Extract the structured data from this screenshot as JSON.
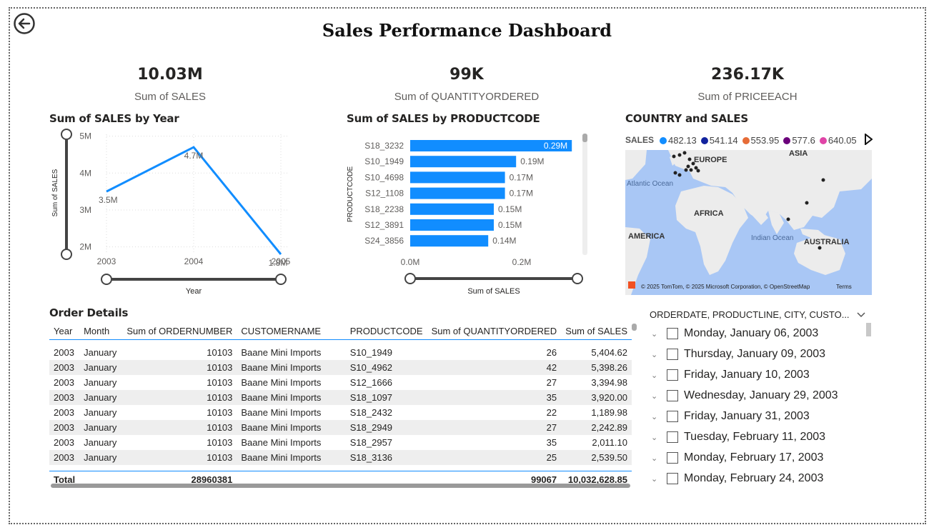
{
  "header": {
    "title": "Sales Performance Dashboard"
  },
  "kpis": [
    {
      "value": "10.03M",
      "label": "Sum of SALES"
    },
    {
      "value": "99K",
      "label": "Sum of QUANTITYORDERED"
    },
    {
      "value": "236.17K",
      "label": "Sum of PRICEEACH"
    }
  ],
  "line_chart": {
    "title": "Sum of SALES by Year",
    "chart_data": {
      "type": "line",
      "x": [
        "2003",
        "2004",
        "2005"
      ],
      "series": [
        {
          "values": [
            3.5,
            4.7,
            1.8
          ]
        }
      ],
      "data_labels": [
        "3.5M",
        "4.7M",
        "1.8M"
      ],
      "y_ticks": [
        "2M",
        "3M",
        "4M",
        "5M"
      ],
      "y_tick_values": [
        2,
        3,
        4,
        5
      ],
      "ylim": [
        1.8,
        5.05
      ],
      "xlabel": "Year",
      "ylabel": "Sum of SALES",
      "color": "#118dff",
      "grid": true
    }
  },
  "bar_chart": {
    "title": "Sum of SALES by PRODUCTCODE",
    "chart_data": {
      "type": "bar",
      "orientation": "horizontal",
      "categories": [
        "S18_3232",
        "S10_1949",
        "S10_4698",
        "S12_1108",
        "S18_2238",
        "S12_3891",
        "S24_3856"
      ],
      "values": [
        0.29,
        0.19,
        0.17,
        0.17,
        0.15,
        0.15,
        0.14
      ],
      "data_labels": [
        "0.29M",
        "0.19M",
        "0.17M",
        "0.17M",
        "0.15M",
        "0.15M",
        "0.14M"
      ],
      "x_ticks": [
        "0.0M",
        "0.2M"
      ],
      "x_tick_values": [
        0,
        0.2
      ],
      "xlim": [
        0,
        0.3
      ],
      "xlabel": "Sum of SALES",
      "ylabel": "PRODUCTCODE",
      "color": "#118dff"
    }
  },
  "map": {
    "title": "COUNTRY and SALES",
    "legend_title": "SALES",
    "legend": [
      {
        "label": "482.13",
        "color": "#118dff"
      },
      {
        "label": "541.14",
        "color": "#12239e"
      },
      {
        "label": "553.95",
        "color": "#e66c37"
      },
      {
        "label": "577.6",
        "color": "#6b007b"
      },
      {
        "label": "640.05",
        "color": "#e044a7"
      }
    ],
    "regions": [
      "ASIA",
      "EUROPE",
      "Atlantic Ocean",
      "AFRICA",
      "AMERICA",
      "Indian Ocean",
      "AUSTRALIA"
    ],
    "attribution": "© 2025 TomTom, © 2025 Microsoft Corporation, © OpenStreetMap",
    "terms": "Terms"
  },
  "table": {
    "title": "Order Details",
    "columns": [
      "Year",
      "Month",
      "Sum of ORDERNUMBER",
      "CUSTOMERNAME",
      "PRODUCTCODE",
      "Sum of QUANTITYORDERED",
      "Sum of SALES"
    ],
    "rows": [
      [
        "2003",
        "January",
        "10103",
        "Baane Mini Imports",
        "S10_1949",
        "26",
        "5,404.62"
      ],
      [
        "2003",
        "January",
        "10103",
        "Baane Mini Imports",
        "S10_4962",
        "42",
        "5,398.26"
      ],
      [
        "2003",
        "January",
        "10103",
        "Baane Mini Imports",
        "S12_1666",
        "27",
        "3,394.98"
      ],
      [
        "2003",
        "January",
        "10103",
        "Baane Mini Imports",
        "S18_1097",
        "35",
        "3,920.00"
      ],
      [
        "2003",
        "January",
        "10103",
        "Baane Mini Imports",
        "S18_2432",
        "22",
        "1,189.98"
      ],
      [
        "2003",
        "January",
        "10103",
        "Baane Mini Imports",
        "S18_2949",
        "27",
        "2,242.89"
      ],
      [
        "2003",
        "January",
        "10103",
        "Baane Mini Imports",
        "S18_2957",
        "35",
        "2,011.10"
      ],
      [
        "2003",
        "January",
        "10103",
        "Baane Mini Imports",
        "S18_3136",
        "25",
        "2,539.50"
      ]
    ],
    "total": {
      "label": "Total",
      "ordernumber": "28960381",
      "quantity": "99067",
      "sales": "10,032,628.85"
    }
  },
  "slicer": {
    "header": "ORDERDATE, PRODUCTLINE, CITY, CUSTO...",
    "items": [
      "Monday, January 06, 2003",
      "Thursday, January 09, 2003",
      "Friday, January 10, 2003",
      "Wednesday, January 29, 2003",
      "Friday, January 31, 2003",
      "Tuesday, February 11, 2003",
      "Monday, February 17, 2003",
      "Monday, February 24, 2003"
    ]
  }
}
